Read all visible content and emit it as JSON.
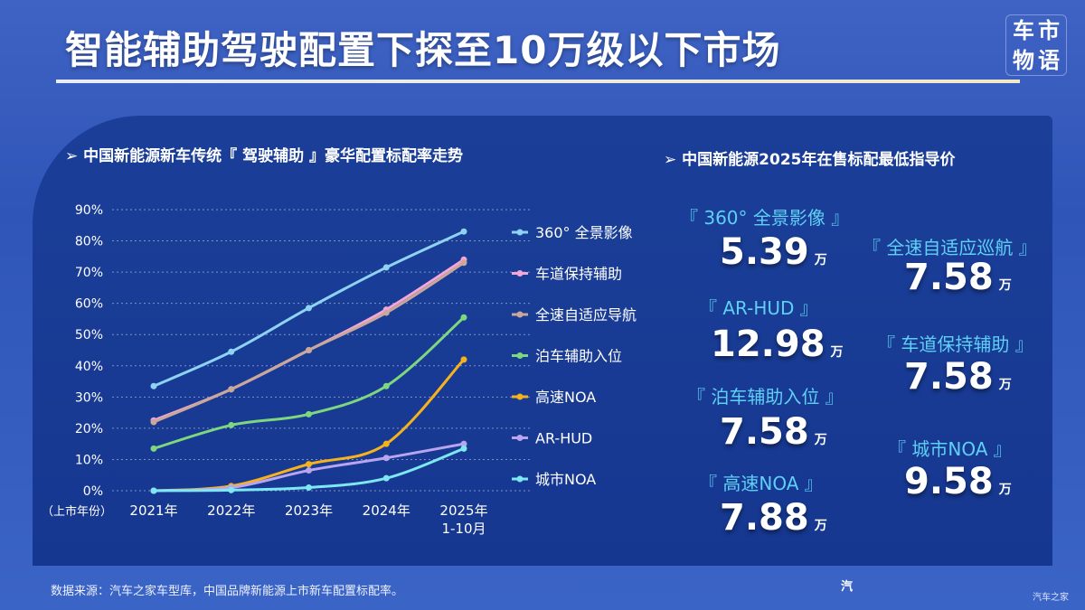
{
  "title": "智能辅助驾驶配置下探至10万级以下市场",
  "logo": [
    "车",
    "市",
    "物",
    "语"
  ],
  "left_subtitle": "➢ 中国新能源新车传统『 驾驶辅助 』豪华配置标配率走势",
  "right_subtitle": "➢ 中国新能源2025年在售标配最低指导价",
  "chart_data": {
    "type": "line",
    "x_label_prefix": "（上市年份）",
    "categories": [
      "2021年",
      "2022年",
      "2023年",
      "2024年",
      "2025年\n1-10月"
    ],
    "y_ticks": [
      "90%",
      "80%",
      "70%",
      "60%",
      "50%",
      "40%",
      "30%",
      "20%",
      "10%",
      "0%"
    ],
    "ylim": [
      0,
      90
    ],
    "grid": true,
    "legend_placement": "right",
    "series": [
      {
        "name": "360° 全景影像",
        "color": "#8fd3f4",
        "values": [
          33.5,
          44.5,
          58.5,
          71.5,
          83
        ]
      },
      {
        "name": "车道保持辅助",
        "color": "#f3a6d8",
        "values": [
          22.5,
          32.5,
          45,
          58,
          74
        ]
      },
      {
        "name": "全速自适应导航",
        "color": "#c9a79a",
        "values": [
          22,
          32.5,
          45,
          57,
          73
        ]
      },
      {
        "name": "泊车辅助入位",
        "color": "#7ed67e",
        "values": [
          13.5,
          21,
          24.5,
          33.5,
          55.5
        ]
      },
      {
        "name": "高速NOA",
        "color": "#f6b21c",
        "values": [
          0,
          1.5,
          8.5,
          15,
          42
        ]
      },
      {
        "name": "AR-HUD",
        "color": "#b9a4f0",
        "values": [
          0,
          1,
          6.5,
          10.5,
          15
        ]
      },
      {
        "name": "城市NOA",
        "color": "#7ee8f2",
        "values": [
          0,
          0.2,
          1,
          4,
          13.5
        ]
      }
    ]
  },
  "prices": [
    {
      "label": "『 360° 全景影像 』",
      "value": "5.39",
      "unit": "万"
    },
    {
      "label": "『 AR-HUD 』",
      "value": "12.98",
      "unit": "万"
    },
    {
      "label": "『 泊车辅助入位 』",
      "value": "7.58",
      "unit": "万"
    },
    {
      "label": "『 高速NOA 』",
      "value": "7.88",
      "unit": "万"
    },
    {
      "label": "『 全速自适应巡航 』",
      "value": "7.58",
      "unit": "万"
    },
    {
      "label": "『 车道保持辅助 』",
      "value": "7.58",
      "unit": "万"
    },
    {
      "label": "『 城市NOA 』",
      "value": "9.58",
      "unit": "万"
    }
  ],
  "source": "数据来源：汽车之家车型库，中国品牌新能源上市新车配置标配率。",
  "brand": "汽",
  "corner_icon": "汽车之家"
}
